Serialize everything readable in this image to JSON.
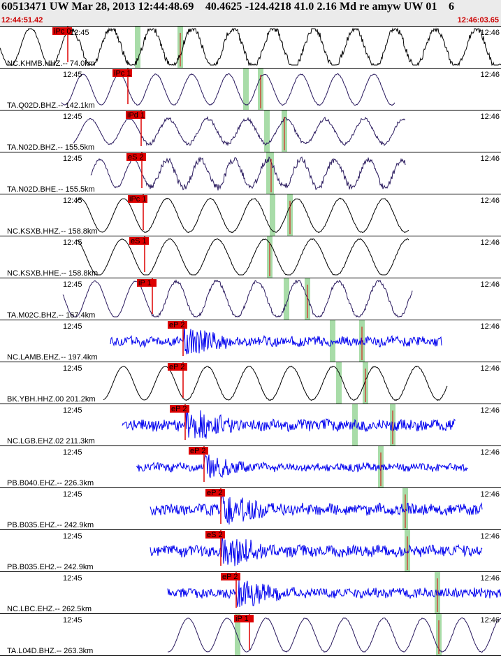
{
  "header": {
    "title": "60513471 UW Mar 28, 2013 12:44:48.69    40.4625 -124.4218 41.0 2.16 Md re amyw UW 01    6",
    "start_time": "12:44:51.42",
    "end_time": "12:46:03.65"
  },
  "colors": {
    "header_bg": "#ebebeb",
    "pick": "#dd0000",
    "green_marker": "#a8dca8",
    "trace_black": "#000000",
    "trace_purple": "#2a1a5e",
    "trace_blue": "#0000ee"
  },
  "panels": [
    {
      "station": "NC.KHMB.HHZ.-- 74.0km",
      "left_tick": "",
      "right_tick": "12:46",
      "tick_inline": "12:45",
      "pick": "iPc 0",
      "color": "black",
      "noise": "high"
    },
    {
      "station": "TA.Q02D.BHZ.-- 142.1km",
      "left_tick": "12:45",
      "right_tick": "12:46",
      "pick": "iPc 1",
      "color": "purple",
      "noise": "low"
    },
    {
      "station": "TA.N02D.BHZ.-- 155.5km",
      "left_tick": "12:45",
      "right_tick": "12:46",
      "pick": "iPd 1",
      "color": "purple",
      "noise": "mid"
    },
    {
      "station": "TA.N02D.BHE.-- 155.5km",
      "left_tick": "12:45",
      "right_tick": "12:46",
      "pick": "eS 2",
      "color": "purple",
      "noise": "high"
    },
    {
      "station": "NC.KSXB.HHZ.-- 158.8km",
      "left_tick": "12:45",
      "right_tick": "12:46",
      "pick": "iPc 1",
      "color": "black",
      "noise": "low"
    },
    {
      "station": "NC.KSXB.HHE.-- 158.8km",
      "left_tick": "12:45",
      "right_tick": "12:46",
      "pick": "eS 1",
      "color": "black",
      "noise": "low"
    },
    {
      "station": "TA.M02C.BHZ.-- 167.4km",
      "left_tick": "12:45",
      "right_tick": "12:46",
      "pick": "iP 1",
      "color": "purple",
      "noise": "mid"
    },
    {
      "station": "NC.LAMB.EHZ.-- 197.4km",
      "left_tick": "12:45",
      "right_tick": "12:46",
      "pick": "eP 2",
      "color": "blue",
      "noise": "band"
    },
    {
      "station": "BK.YBH.HHZ.00 201.2km",
      "left_tick": "12:45",
      "right_tick": "12:46",
      "pick": "eP 2",
      "color": "black",
      "noise": "low"
    },
    {
      "station": "NC.LGB.EHZ.02 211.3km",
      "left_tick": "12:45",
      "right_tick": "12:46",
      "pick": "eP 2",
      "color": "blue",
      "noise": "band"
    },
    {
      "station": "PB.B040.EHZ.-- 226.3km",
      "left_tick": "12:45",
      "right_tick": "12:46",
      "pick": "eP 2",
      "color": "blue",
      "noise": "band"
    },
    {
      "station": "PB.B035.EHZ.-- 242.9km",
      "left_tick": "12:45",
      "right_tick": "12:46",
      "pick": "eP 2",
      "color": "blue",
      "noise": "band"
    },
    {
      "station": "PB.B035.EH2.-- 242.9km",
      "left_tick": "12:45",
      "right_tick": "12:46",
      "pick": "eS 2",
      "color": "blue",
      "noise": "band"
    },
    {
      "station": "NC.LBC.EHZ.-- 262.5km",
      "left_tick": "12:45",
      "right_tick": "12:46",
      "pick": "eP 2",
      "color": "blue",
      "noise": "band"
    },
    {
      "station": "TA.L04D.BHZ.-- 263.3km",
      "left_tick": "12:45",
      "right_tick": "12:46",
      "pick": "iP 1",
      "color": "purple",
      "noise": "low"
    }
  ]
}
